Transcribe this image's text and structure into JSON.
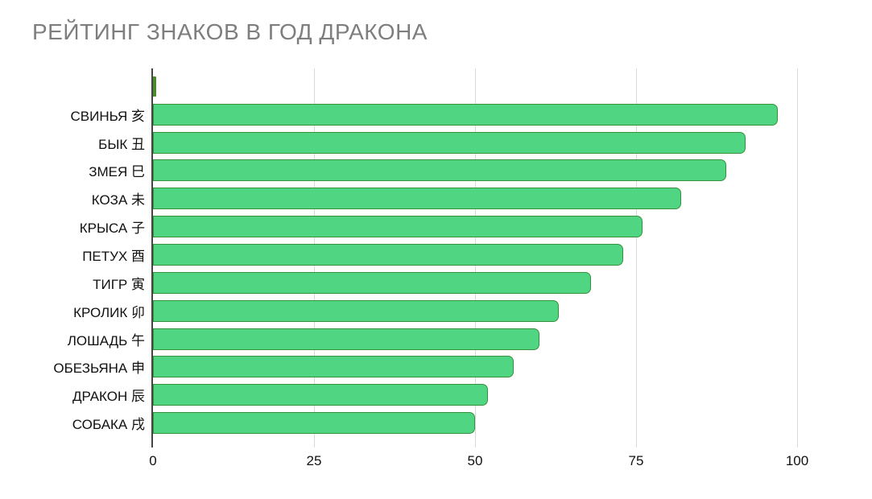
{
  "title": "РЕЙТИНГ ЗНАКОВ В ГОД ДРАКОНА",
  "chart_data": {
    "type": "bar",
    "orientation": "horizontal",
    "title": "РЕЙТИНГ ЗНАКОВ В ГОД ДРАКОНА",
    "categories": [
      "",
      "СВИНЬЯ 亥",
      "БЫК 丑",
      "ЗМЕЯ 巳",
      "КОЗА 未",
      "КРЫСА 子",
      "ПЕТУХ 酉",
      "ТИГР 寅",
      "КРОЛИК 卯",
      "ЛОШАДЬ 午",
      "ОБЕЗЬЯНА 申",
      "ДРАКОН 辰",
      "СОБАКА 戌"
    ],
    "values": [
      0.5,
      97,
      92,
      89,
      82,
      76,
      73,
      68,
      63,
      60,
      56,
      52,
      50
    ],
    "x_tick_labels": [
      "0",
      "25",
      "50",
      "75",
      "100"
    ],
    "x_tick_values": [
      0,
      25,
      50,
      75,
      100
    ],
    "xlim": [
      0,
      100
    ],
    "grid": "vertical",
    "legend": "none",
    "colors": {
      "bar_fill": "#50D682",
      "bar_border": "#38913C",
      "small_bar": "#4C8A31",
      "gridline": "#D9D9D9",
      "axis_line": "#454545",
      "title_text": "#7E7E7E",
      "label_text": "#111111",
      "background": "#FFFFFF"
    }
  }
}
